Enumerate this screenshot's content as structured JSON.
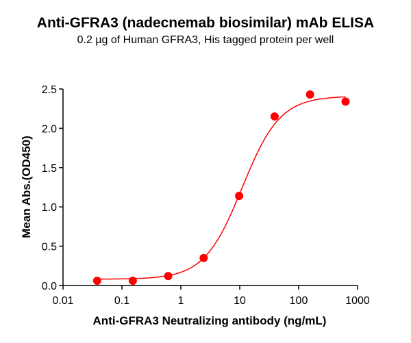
{
  "chart_data": {
    "type": "scatter",
    "title": "Anti-GFRA3 (nadecnemab biosimilar) mAb ELISA",
    "subtitle": "0.2 µg of Human GFRA3, His tagged protein per well",
    "xlabel": "Anti-GFRA3 Neutralizing antibody (ng/mL)",
    "ylabel": "Mean Abs.(OD450)",
    "x_scale": "log",
    "xlim": [
      0.01,
      1000
    ],
    "ylim": [
      0,
      2.5
    ],
    "x_ticks": [
      "0.01",
      "0.1",
      "1",
      "10",
      "100",
      "1000"
    ],
    "y_ticks": [
      "0.0",
      "0.5",
      "1.0",
      "1.5",
      "2.0",
      "2.5"
    ],
    "grid": false,
    "color": "#ff0000",
    "points": {
      "x": [
        0.038,
        0.153,
        0.61,
        2.44,
        9.77,
        39.1,
        156,
        625
      ],
      "y": [
        0.06,
        0.06,
        0.12,
        0.35,
        1.14,
        2.15,
        2.43,
        2.34
      ]
    },
    "fit": {
      "model": "4PL",
      "bottom": 0.08,
      "top": 2.41,
      "ec50": 11,
      "hill": 1.35
    }
  }
}
